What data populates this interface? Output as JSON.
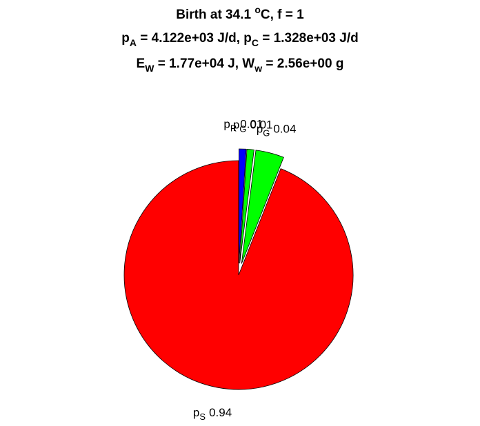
{
  "chart_data": {
    "type": "pie",
    "title": [
      [
        {
          "text": "Birth at 34.1 "
        },
        {
          "text": "o",
          "style": "sup"
        },
        {
          "text": "C, f = 1"
        }
      ],
      [
        {
          "text": "p"
        },
        {
          "text": "A",
          "style": "sub"
        },
        {
          "text": " = 4.122e+03 J/d, p"
        },
        {
          "text": "C",
          "style": "sub"
        },
        {
          "text": " = 1.328e+03 J/d"
        }
      ],
      [
        {
          "text": "E"
        },
        {
          "text": "W",
          "style": "sub"
        },
        {
          "text": " = 1.77e+04 J, W"
        },
        {
          "text": "w",
          "style": "sub"
        },
        {
          "text": " = 2.56e+00 g"
        }
      ]
    ],
    "slices": [
      {
        "name": "p",
        "subscript": "R",
        "value": 0.01,
        "color": "#0000ff",
        "explode": true
      },
      {
        "name": "p",
        "subscript": "G",
        "value": 0.01,
        "color": "#00ff00",
        "explode": true
      },
      {
        "name": "p",
        "subscript": "G",
        "value": 0.04,
        "color": "#00ff00",
        "explode": true
      },
      {
        "name": "p",
        "subscript": "S",
        "value": 0.94,
        "color": "#ff0000",
        "explode": false
      }
    ]
  }
}
